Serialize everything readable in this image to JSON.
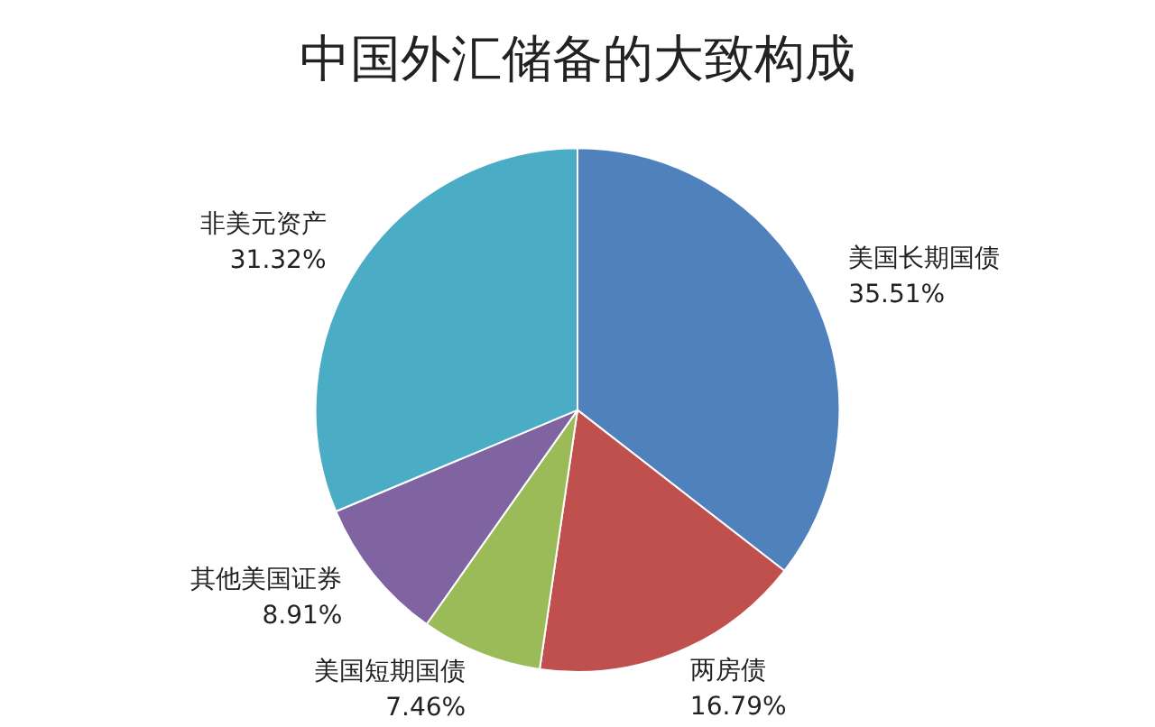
{
  "chart_data": {
    "type": "pie",
    "title": "中国外汇储备的大致构成",
    "categories": [
      "美国长期国债",
      "两房债",
      "美国短期国债",
      "其他美国证券",
      "非美元资产"
    ],
    "values": [
      35.51,
      16.79,
      7.46,
      8.91,
      31.32
    ],
    "colors": [
      "#4f81bd",
      "#c0504d",
      "#9bbb59",
      "#8064a2",
      "#4bacc6"
    ],
    "value_labels": [
      "35.51%",
      "16.79%",
      "7.46%",
      "8.91%",
      "31.32%"
    ],
    "legend": false
  }
}
